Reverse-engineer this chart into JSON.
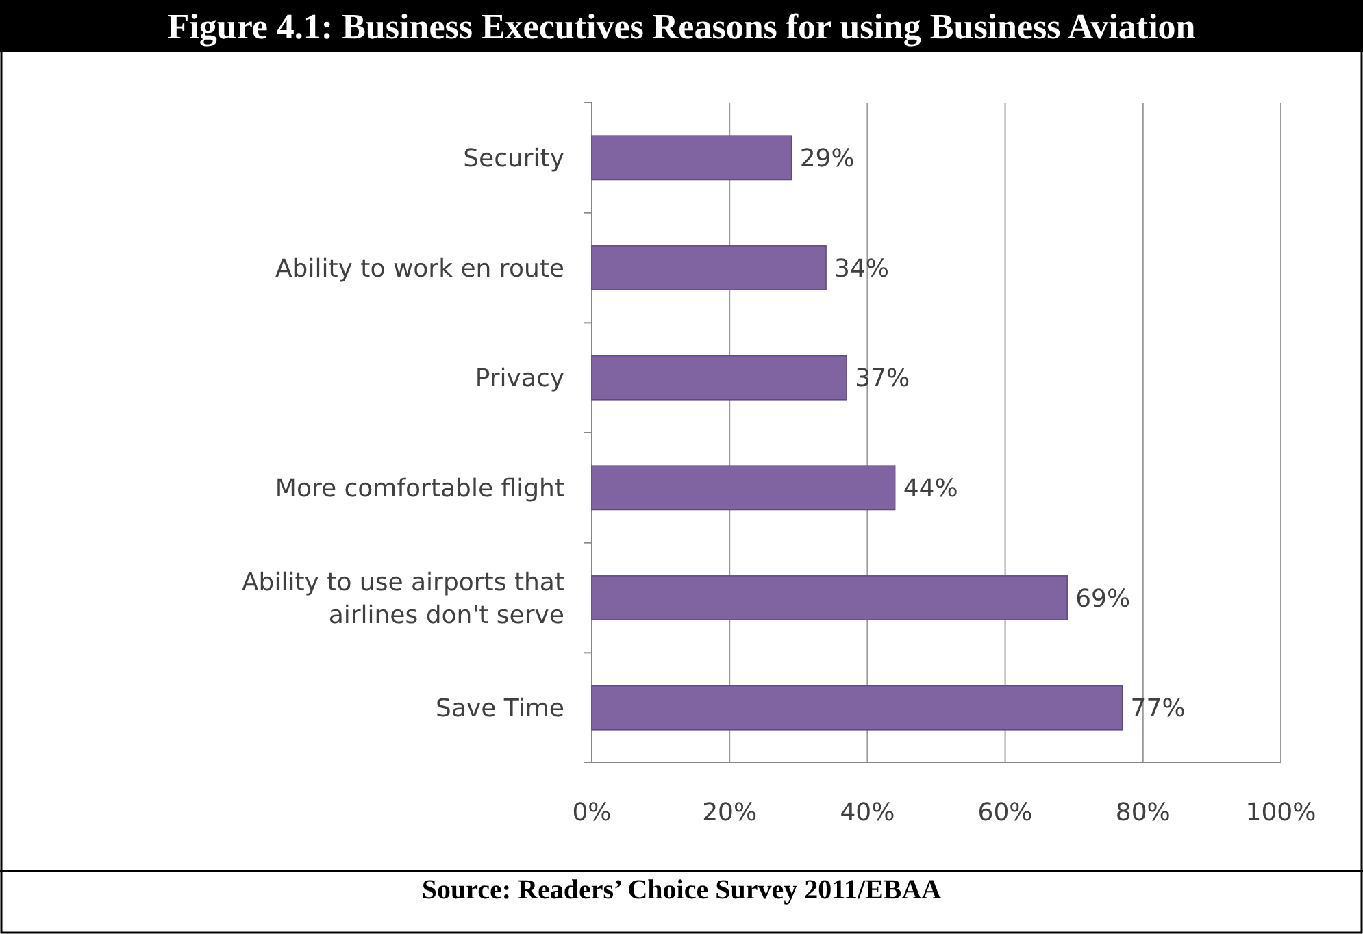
{
  "chart_data": {
    "type": "bar",
    "orientation": "horizontal",
    "title": "Figure 4.1: Business Executives Reasons for using Business Aviation",
    "categories": [
      "Security",
      "Ability to work en route",
      "Privacy",
      "More comfortable flight",
      "Ability to use airports that airlines don't serve",
      "Save Time"
    ],
    "values": [
      29,
      34,
      37,
      44,
      69,
      77
    ],
    "color": "#8064a2",
    "value_labels": [
      "29%",
      "34%",
      "37%",
      "44%",
      "69%",
      "77%"
    ],
    "xlim": [
      0,
      100
    ],
    "xticks": [
      {
        "value": 0,
        "label": "0%"
      },
      {
        "value": 20,
        "label": "20%"
      },
      {
        "value": 40,
        "label": "40%"
      },
      {
        "value": 60,
        "label": "60%"
      },
      {
        "value": 80,
        "label": "80%"
      },
      {
        "value": 100,
        "label": "100%"
      }
    ],
    "grid": "x",
    "annotations": [
      "Source: Readers’ Choice Survey 2011/EBAA"
    ]
  }
}
